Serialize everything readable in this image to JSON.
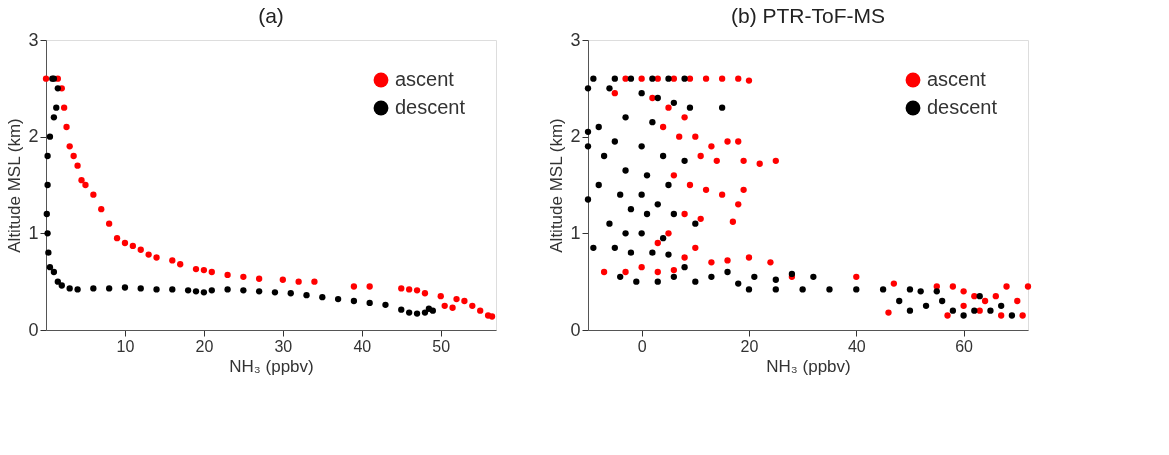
{
  "chart_data": [
    {
      "type": "scatter",
      "title": "(a)",
      "xlabel": "NH₃ (ppbv)",
      "ylabel": "Altitude MSL (km)",
      "xlim": [
        0,
        57
      ],
      "xticks": [
        10,
        20,
        30,
        40,
        50
      ],
      "ylim": [
        0,
        3
      ],
      "yticks": [
        0,
        1,
        2,
        3
      ],
      "grid": false,
      "legend": "top right",
      "marker": "circle",
      "series": [
        {
          "name": "ascent",
          "color": "#ff0000",
          "x": [
            0,
            1.5,
            2,
            2.3,
            2.6,
            3,
            3.5,
            4,
            4.5,
            5,
            6,
            7,
            8,
            9,
            10,
            11,
            12,
            13,
            14,
            16,
            17,
            19,
            20,
            21,
            23,
            25,
            27,
            30,
            32,
            34,
            39,
            41,
            45,
            46,
            47,
            48,
            50,
            50.5,
            51.5,
            52,
            53,
            54,
            55,
            56,
            56.5
          ],
          "values": [
            2.6,
            2.6,
            2.5,
            2.3,
            2.1,
            1.9,
            1.8,
            1.7,
            1.55,
            1.5,
            1.4,
            1.25,
            1.1,
            0.95,
            0.9,
            0.87,
            0.83,
            0.78,
            0.75,
            0.72,
            0.68,
            0.63,
            0.62,
            0.6,
            0.57,
            0.55,
            0.53,
            0.52,
            0.5,
            0.5,
            0.45,
            0.45,
            0.43,
            0.42,
            0.41,
            0.38,
            0.35,
            0.25,
            0.23,
            0.32,
            0.3,
            0.25,
            0.2,
            0.15,
            0.14
          ]
        },
        {
          "name": "descent",
          "color": "#000000",
          "x": [
            0.8,
            1,
            1.5,
            1.3,
            1,
            0.5,
            0.2,
            0.2,
            0.1,
            0.2,
            0.3,
            0.5,
            1,
            1.5,
            2,
            3,
            4,
            6,
            8,
            10,
            12,
            14,
            16,
            18,
            19,
            20,
            21,
            23,
            25,
            27,
            29,
            31,
            33,
            35,
            37,
            39,
            41,
            43,
            45,
            46,
            47,
            48,
            48.5,
            49
          ],
          "values": [
            2.6,
            2.6,
            2.5,
            2.3,
            2.2,
            2.0,
            1.8,
            1.5,
            1.2,
            1.0,
            0.8,
            0.65,
            0.6,
            0.5,
            0.46,
            0.43,
            0.42,
            0.43,
            0.43,
            0.44,
            0.43,
            0.42,
            0.42,
            0.41,
            0.4,
            0.39,
            0.41,
            0.42,
            0.41,
            0.4,
            0.39,
            0.38,
            0.36,
            0.34,
            0.32,
            0.3,
            0.28,
            0.26,
            0.21,
            0.18,
            0.17,
            0.18,
            0.22,
            0.2
          ]
        }
      ]
    },
    {
      "type": "scatter",
      "title": "(b) PTR-ToF-MS",
      "xlabel": "NH₃ (ppbv)",
      "ylabel": "Altitude MSL (km)",
      "xlim": [
        -10,
        72
      ],
      "xticks": [
        0,
        20,
        40,
        60
      ],
      "ylim": [
        0,
        3
      ],
      "yticks": [
        0,
        1,
        2,
        3
      ],
      "grid": false,
      "legend": "top right",
      "marker": "circle",
      "series": [
        {
          "name": "ascent",
          "color": "#ff0000",
          "x": [
            -3,
            0,
            3,
            6,
            9,
            12,
            15,
            18,
            20,
            -5,
            2,
            5,
            8,
            4,
            7,
            10,
            13,
            16,
            18,
            11,
            14,
            19,
            25,
            22,
            6,
            9,
            12,
            15,
            19,
            18,
            8,
            11,
            5,
            3,
            17,
            10,
            8,
            13,
            16,
            20,
            24,
            -7,
            -3,
            0,
            3,
            6,
            28,
            40,
            47,
            55,
            58,
            60,
            62,
            64,
            66,
            68,
            70,
            72,
            63,
            57,
            67,
            71,
            46,
            60
          ],
          "values": [
            2.6,
            2.6,
            2.6,
            2.6,
            2.6,
            2.6,
            2.6,
            2.6,
            2.58,
            2.45,
            2.4,
            2.3,
            2.2,
            2.1,
            2.0,
            2.0,
            1.9,
            1.95,
            1.95,
            1.8,
            1.75,
            1.75,
            1.75,
            1.72,
            1.6,
            1.5,
            1.45,
            1.4,
            1.45,
            1.3,
            1.2,
            1.15,
            1.0,
            0.9,
            1.12,
            0.85,
            0.75,
            0.7,
            0.72,
            0.75,
            0.7,
            0.6,
            0.6,
            0.65,
            0.6,
            0.62,
            0.55,
            0.55,
            0.48,
            0.45,
            0.45,
            0.4,
            0.35,
            0.3,
            0.35,
            0.45,
            0.3,
            0.45,
            0.2,
            0.15,
            0.15,
            0.15,
            0.18,
            0.25
          ]
        },
        {
          "name": "descent",
          "color": "#000000",
          "x": [
            -9,
            -5,
            -2,
            2,
            5,
            8,
            -10,
            -6,
            0,
            3,
            6,
            9,
            15,
            -3,
            2,
            -10,
            -8,
            -10,
            -5,
            0,
            4,
            8,
            -7,
            -3,
            1,
            5,
            -8,
            -4,
            0,
            3,
            -10,
            -2,
            1,
            6,
            10,
            -6,
            -3,
            0,
            4,
            -9,
            -5,
            -2,
            2,
            5,
            8,
            -4,
            -1,
            3,
            6,
            10,
            13,
            16,
            18,
            21,
            25,
            28,
            32,
            20,
            25,
            30,
            35,
            40,
            45,
            50,
            52,
            48,
            50,
            53,
            56,
            58,
            60,
            62,
            65,
            67,
            69,
            55,
            63
          ],
          "values": [
            2.6,
            2.6,
            2.6,
            2.6,
            2.6,
            2.6,
            2.5,
            2.5,
            2.45,
            2.4,
            2.35,
            2.3,
            2.3,
            2.2,
            2.15,
            2.05,
            2.1,
            1.9,
            1.95,
            1.9,
            1.8,
            1.75,
            1.8,
            1.65,
            1.6,
            1.5,
            1.5,
            1.4,
            1.4,
            1.3,
            1.35,
            1.25,
            1.2,
            1.2,
            1.1,
            1.1,
            1.0,
            1.0,
            0.95,
            0.85,
            0.85,
            0.8,
            0.8,
            0.78,
            0.65,
            0.55,
            0.5,
            0.5,
            0.55,
            0.5,
            0.55,
            0.6,
            0.48,
            0.55,
            0.52,
            0.58,
            0.55,
            0.42,
            0.42,
            0.42,
            0.42,
            0.42,
            0.42,
            0.42,
            0.4,
            0.3,
            0.2,
            0.25,
            0.3,
            0.2,
            0.15,
            0.2,
            0.2,
            0.25,
            0.15,
            0.4,
            0.35
          ]
        }
      ]
    }
  ]
}
